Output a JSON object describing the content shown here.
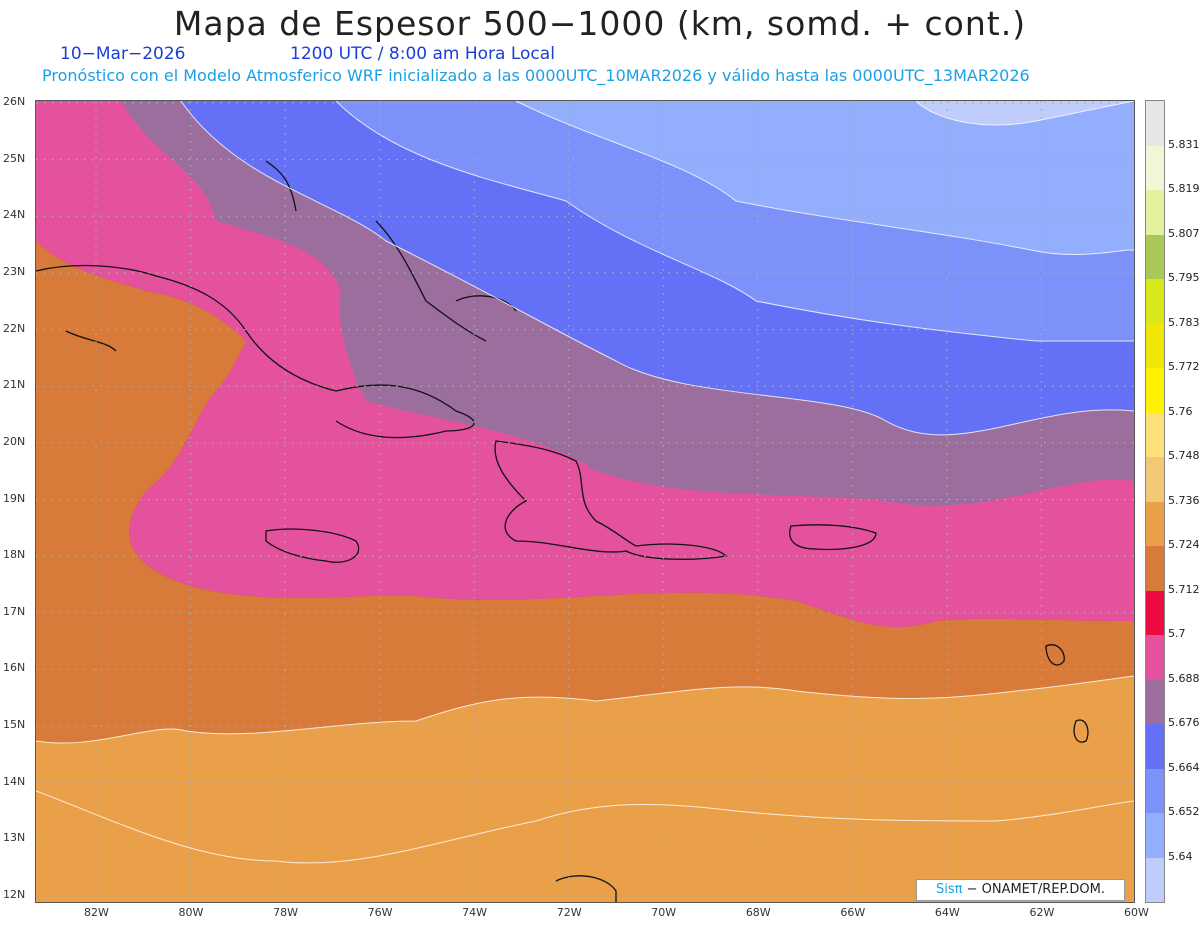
{
  "title": "Mapa de Espesor 500−1000 (km, somd. + cont.)",
  "date": "10−Mar−2026",
  "time": "1200 UTC / 8:00 am Hora Local",
  "forecast": "Pronóstico con el Modelo Atmosferico WRF inicializado a las 0000UTC_10MAR2026 y válido hasta las  0000UTC_13MAR2026",
  "credit_sis": "Sisπ",
  "credit_rest": "− ONAMET/REP.DOM.",
  "lat_labels": [
    "26N",
    "25N",
    "24N",
    "23N",
    "22N",
    "21N",
    "20N",
    "19N",
    "18N",
    "17N",
    "16N",
    "15N",
    "14N",
    "13N",
    "12N"
  ],
  "lon_labels": [
    "82W",
    "80W",
    "78W",
    "76W",
    "74W",
    "72W",
    "70W",
    "68W",
    "66W",
    "64W",
    "62W",
    "60W"
  ],
  "legend_labels": [
    "5.831",
    "5.819",
    "5.807",
    "5.795",
    "5.783",
    "5.772",
    "5.76",
    "5.748",
    "5.736",
    "5.724",
    "5.712",
    "5.7",
    "5.688",
    "5.676",
    "5.664",
    "5.652",
    "5.64"
  ],
  "legend_colors": [
    "#e6e6e6",
    "#f2f5d6",
    "#e4f2a0",
    "#a8c858",
    "#d8e81a",
    "#f0e608",
    "#fff200",
    "#fde07a",
    "#f0c878",
    "#eaa048",
    "#d87a3a",
    "#ee0a42",
    "#e4529e",
    "#9c6e9e",
    "#6470f6",
    "#7c92fa",
    "#92aefc",
    "#c0ccfc"
  ],
  "bands": {
    "band1": "#c0ccfc",
    "band2": "#92aefc",
    "band3": "#7c92fa",
    "band4": "#6470f6",
    "band5": "#9c6e9e",
    "band6": "#e4529e",
    "band7": "#ee0a42",
    "band8": "#d87a3a",
    "band9": "#eaa048"
  }
}
